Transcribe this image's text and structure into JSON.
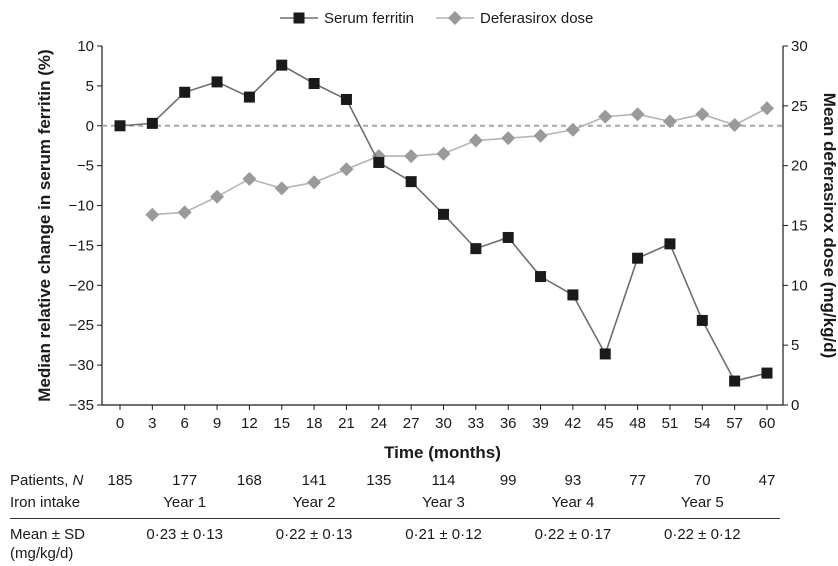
{
  "chart_data": {
    "type": "line",
    "x": [
      0,
      3,
      6,
      9,
      12,
      15,
      18,
      21,
      24,
      27,
      30,
      33,
      36,
      39,
      42,
      45,
      48,
      51,
      54,
      57,
      60
    ],
    "series": [
      {
        "name": "Serum ferritin",
        "axis": "left",
        "marker": "square",
        "color": "#1a1a1a",
        "values": [
          0,
          0.3,
          4.2,
          5.5,
          3.6,
          7.6,
          5.3,
          3.3,
          -4.6,
          -7.0,
          -11.1,
          -15.4,
          -14.0,
          -18.9,
          -21.2,
          -28.6,
          -16.6,
          -14.8,
          -24.4,
          -32.0,
          -31.0
        ]
      },
      {
        "name": "Deferasirox dose",
        "axis": "right",
        "marker": "diamond",
        "color": "#9a9a9a",
        "values": [
          null,
          15.9,
          16.1,
          17.4,
          18.9,
          18.1,
          18.6,
          19.7,
          20.8,
          20.8,
          21.0,
          22.1,
          22.3,
          22.5,
          23.0,
          24.1,
          24.3,
          23.7,
          24.3,
          23.4,
          24.8
        ]
      }
    ],
    "xlabel": "Time (months)",
    "ylabel": "Median relative change in serum ferritin (%)",
    "y2label": "Mean deferasirox dose (mg/kg/d)",
    "ylim": [
      -35,
      10
    ],
    "y2lim": [
      0,
      30
    ],
    "xticks": [
      "0",
      "3",
      "6",
      "9",
      "12",
      "15",
      "18",
      "21",
      "24",
      "27",
      "30",
      "33",
      "36",
      "39",
      "42",
      "45",
      "48",
      "51",
      "54",
      "57",
      "60"
    ],
    "yticks": [
      "10",
      "5",
      "0",
      "−5",
      "−10",
      "−15",
      "−20",
      "−25",
      "−30",
      "−35"
    ],
    "y2ticks": [
      "30",
      "25",
      "20",
      "15",
      "10",
      "5",
      "0"
    ],
    "reference_line": {
      "y": 0,
      "style": "dashed"
    },
    "legend_position": "top-center",
    "grid": false
  },
  "table": {
    "patients_label_prefix": "Patients, ",
    "patients_label_n": "N",
    "patients": [
      {
        "x": 0,
        "value": "185"
      },
      {
        "x": 6,
        "value": "177"
      },
      {
        "x": 12,
        "value": "168"
      },
      {
        "x": 18,
        "value": "141"
      },
      {
        "x": 24,
        "value": "135"
      },
      {
        "x": 30,
        "value": "114"
      },
      {
        "x": 36,
        "value": "99"
      },
      {
        "x": 42,
        "value": "93"
      },
      {
        "x": 48,
        "value": "77"
      },
      {
        "x": 54,
        "value": "70"
      },
      {
        "x": 60,
        "value": "47"
      }
    ],
    "iron_label": "Iron intake",
    "years": [
      {
        "x": 6,
        "label": "Year 1"
      },
      {
        "x": 18,
        "label": "Year 2"
      },
      {
        "x": 30,
        "label": "Year 3"
      },
      {
        "x": 42,
        "label": "Year 4"
      },
      {
        "x": 54,
        "label": "Year 5"
      }
    ],
    "mean_label_line1": "Mean ± SD",
    "mean_label_line2": "(mg/kg/d)",
    "means": [
      {
        "x": 6,
        "value": "0·23 ± 0·13"
      },
      {
        "x": 18,
        "value": "0·22 ± 0·13"
      },
      {
        "x": 30,
        "value": "0·21 ± 0·12"
      },
      {
        "x": 42,
        "value": "0·22 ± 0·17"
      },
      {
        "x": 54,
        "value": "0·22 ± 0·12"
      }
    ]
  }
}
